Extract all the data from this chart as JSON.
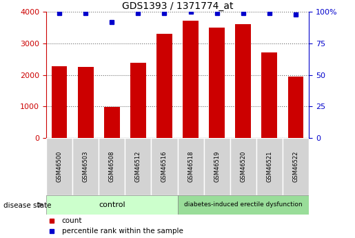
{
  "title": "GDS1393 / 1371774_at",
  "samples": [
    "GSM46500",
    "GSM46503",
    "GSM46508",
    "GSM46512",
    "GSM46516",
    "GSM46518",
    "GSM46519",
    "GSM46520",
    "GSM46521",
    "GSM46522"
  ],
  "counts": [
    2280,
    2250,
    980,
    2380,
    3300,
    3720,
    3500,
    3620,
    2720,
    1950
  ],
  "percentiles": [
    99,
    99,
    92,
    99,
    99,
    100,
    99,
    99,
    99,
    98
  ],
  "bar_color": "#cc0000",
  "dot_color": "#0000cc",
  "ylim_left": [
    0,
    4000
  ],
  "ylim_right": [
    0,
    100
  ],
  "yticks_left": [
    0,
    1000,
    2000,
    3000,
    4000
  ],
  "yticks_right": [
    0,
    25,
    50,
    75,
    100
  ],
  "ytick_labels_right": [
    "0",
    "25",
    "50",
    "75",
    "100%"
  ],
  "control_indices": [
    0,
    1,
    2,
    3,
    4
  ],
  "disease_indices": [
    5,
    6,
    7,
    8,
    9
  ],
  "control_label": "control",
  "disease_label": "diabetes-induced erectile dysfunction",
  "group_label": "disease state",
  "legend_count": "count",
  "legend_percentile": "percentile rank within the sample",
  "tick_box_color": "#d3d3d3",
  "control_fill": "#ccffcc",
  "disease_fill": "#99dd99",
  "left_axis_color": "#cc0000",
  "right_axis_color": "#0000cc",
  "bar_width": 0.6
}
